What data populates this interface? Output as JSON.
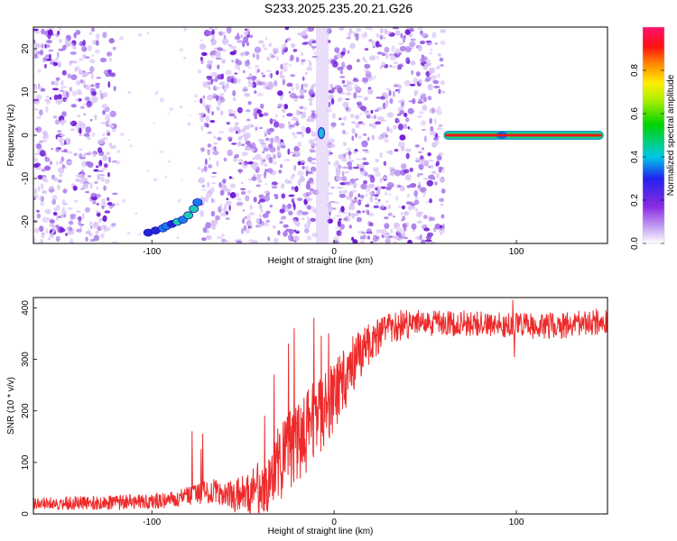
{
  "page": {
    "title": "S233.2025.235.20.21.G26"
  },
  "colors": {
    "background": "#ffffff",
    "axis": "#000000",
    "snr_line": "#ee2a2a",
    "speckle_light": "#d9c3f6",
    "speckle_mid": "#a574ea",
    "speckle_dark": "#6a12d6",
    "band_outer": "#1f9bd4",
    "band_mid": "#16d67a",
    "band_core": "#f01616"
  },
  "chart_data": [
    {
      "id": "spectrogram",
      "type": "heatmap",
      "title": "S233.2025.235.20.21.G26",
      "xlabel": "Height of straight line (km)",
      "ylabel": "Frequency (Hz)",
      "xlim": [
        -165,
        150
      ],
      "ylim": [
        -25,
        25
      ],
      "xticks": [
        -100,
        0,
        100
      ],
      "yticks": [
        -20,
        -10,
        0,
        10,
        20
      ],
      "colorbar": {
        "label": "Normalized spectral amplitude",
        "range": [
          0,
          1
        ],
        "ticks": [
          0.0,
          0.2,
          0.4,
          0.6,
          0.8
        ],
        "tick_labels": [
          "0.0",
          "0.2",
          "0.4",
          "0.6",
          "0.8"
        ]
      },
      "features": [
        {
          "name": "speckle-region-left",
          "x_range": [
            -165,
            -120
          ],
          "freq_range": [
            -25,
            25
          ],
          "level": "low"
        },
        {
          "name": "speckle-region-middle",
          "x_range": [
            -73,
            -10
          ],
          "freq_range": [
            -25,
            25
          ],
          "level": "low"
        },
        {
          "name": "speckle-region-right",
          "x_range": [
            -3,
            60
          ],
          "freq_range": [
            -25,
            25
          ],
          "level": "low"
        },
        {
          "name": "gap-left",
          "x_range": [
            -120,
            -73
          ],
          "note": "sparse data"
        },
        {
          "name": "gap-center",
          "x_range": [
            -10,
            -3
          ],
          "note": "vertical streak"
        },
        {
          "name": "empty-right",
          "x_range": [
            60,
            150
          ],
          "note": "no data except tone"
        }
      ],
      "cluster": {
        "name": "low-frequency-cluster",
        "points": [
          {
            "x": -102,
            "y": -22.5,
            "amp": 0.35
          },
          {
            "x": -98,
            "y": -22.0,
            "amp": 0.3
          },
          {
            "x": -94,
            "y": -21.5,
            "amp": 0.4
          },
          {
            "x": -92,
            "y": -21.0,
            "amp": 0.45
          },
          {
            "x": -89,
            "y": -20.5,
            "amp": 0.35
          },
          {
            "x": -86,
            "y": -20.0,
            "amp": 0.5
          },
          {
            "x": -83,
            "y": -19.5,
            "amp": 0.4
          },
          {
            "x": -80,
            "y": -18.5,
            "amp": 0.55
          },
          {
            "x": -77,
            "y": -17.0,
            "amp": 0.5
          },
          {
            "x": -75,
            "y": -15.5,
            "amp": 0.45
          }
        ]
      },
      "spot": {
        "name": "zero-frequency-spot",
        "x": -7,
        "y": 0.5,
        "amp": 0.35
      },
      "tone": {
        "name": "zero-frequency-tone",
        "x_range": [
          60,
          148
        ],
        "y": 0,
        "amp": 1.0,
        "highlight_x": 92
      }
    },
    {
      "id": "snr",
      "type": "line",
      "xlabel": "Height of straight line (km)",
      "ylabel": "SNR (10 * v/v)",
      "xlim": [
        -165,
        150
      ],
      "ylim": [
        0,
        420
      ],
      "xticks": [
        -100,
        0,
        100
      ],
      "yticks": [
        0,
        100,
        200,
        300,
        400
      ],
      "series": [
        {
          "name": "SNR",
          "baseline": {
            "x": [
              -165,
              -140,
              -120,
              -100,
              -85,
              -75,
              -65,
              -55,
              -45,
              -35,
              -25,
              -15,
              -5,
              5,
              15,
              25,
              35,
              50,
              75,
              100,
              125,
              150
            ],
            "y": [
              20,
              21,
              22,
              25,
              30,
              40,
              45,
              35,
              40,
              70,
              120,
              160,
              200,
              260,
              310,
              350,
              365,
              370,
              370,
              365,
              365,
              375
            ]
          },
          "noise_amplitude": {
            "x": [
              -165,
              -100,
              -80,
              -60,
              -45,
              -30,
              -10,
              10,
              25,
              50,
              100,
              150
            ],
            "y": [
              12,
              15,
              20,
              25,
              45,
              80,
              80,
              60,
              35,
              25,
              25,
              25
            ]
          },
          "spikes": [
            {
              "x": -78,
              "y": 160
            },
            {
              "x": -73,
              "y": 125
            },
            {
              "x": -72,
              "y": 155
            },
            {
              "x": -38,
              "y": 190
            },
            {
              "x": -33,
              "y": 270
            },
            {
              "x": -31,
              "y": 165
            },
            {
              "x": -25,
              "y": 330
            },
            {
              "x": -22,
              "y": 360
            },
            {
              "x": -21,
              "y": 205
            },
            {
              "x": -11,
              "y": 380
            },
            {
              "x": -7,
              "y": 345
            },
            {
              "x": -3,
              "y": 350
            },
            {
              "x": 98,
              "y": 415
            },
            {
              "x": 99,
              "y": 305
            }
          ]
        }
      ]
    }
  ]
}
